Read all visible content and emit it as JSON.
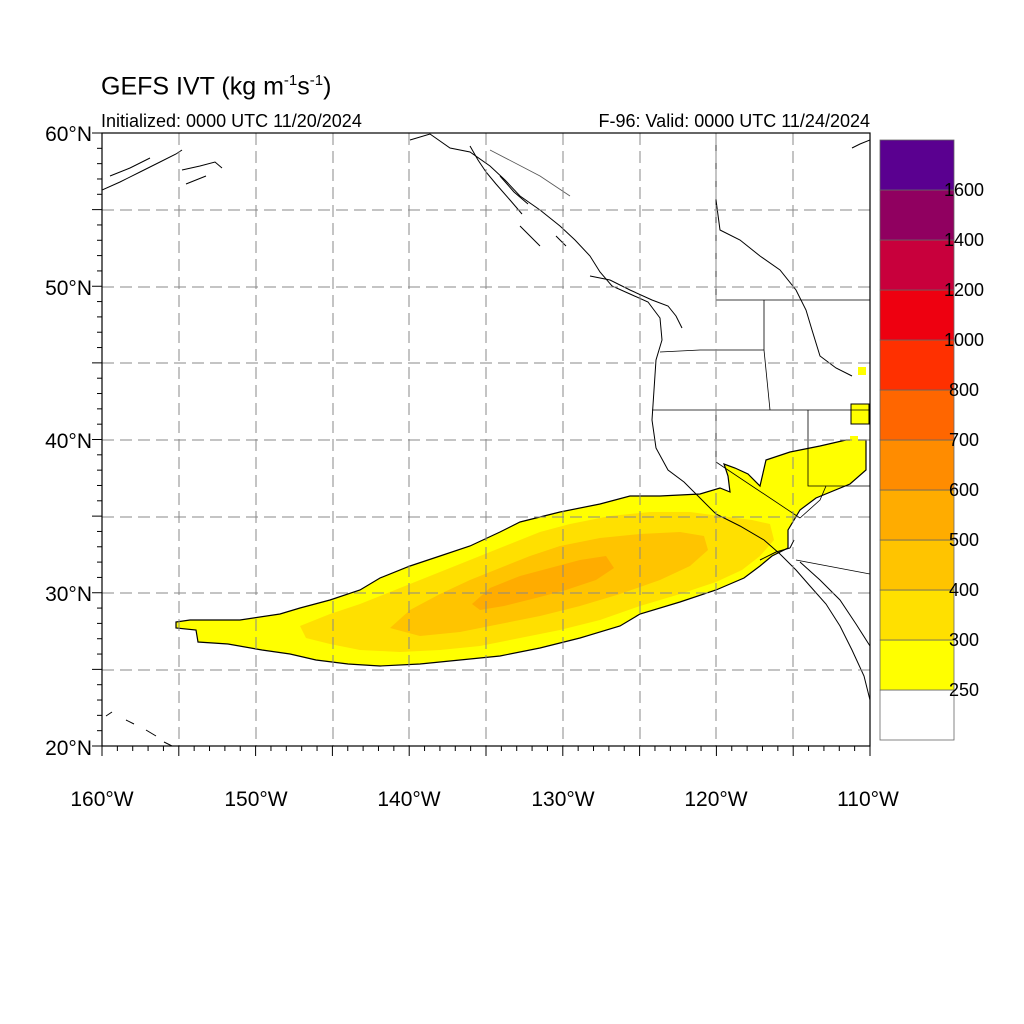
{
  "title": {
    "main": "GEFS IVT (kg m",
    "exp1": "-1",
    "mid": "s",
    "exp2": "-1",
    "end": ")"
  },
  "initialized": "Initialized: 0000 UTC 11/20/2024",
  "valid": "F-96: Valid: 0000 UTC 11/24/2024",
  "lat_labels": [
    "60°N",
    "50°N",
    "40°N",
    "30°N",
    "20°N"
  ],
  "lon_labels": [
    "160°W",
    "150°W",
    "140°W",
    "130°W",
    "120°W",
    "110°W"
  ],
  "colorbar": {
    "labels": [
      "250",
      "300",
      "400",
      "500",
      "600",
      "700",
      "800",
      "1000",
      "1200",
      "1400",
      "1600"
    ],
    "colors": [
      "#ffffff",
      "#ffff00",
      "#ffe000",
      "#ffc400",
      "#ffac00",
      "#ff8c00",
      "#ff6600",
      "#ff3000",
      "#ee0010",
      "#c8003c",
      "#900060",
      "#5a0090"
    ]
  }
}
